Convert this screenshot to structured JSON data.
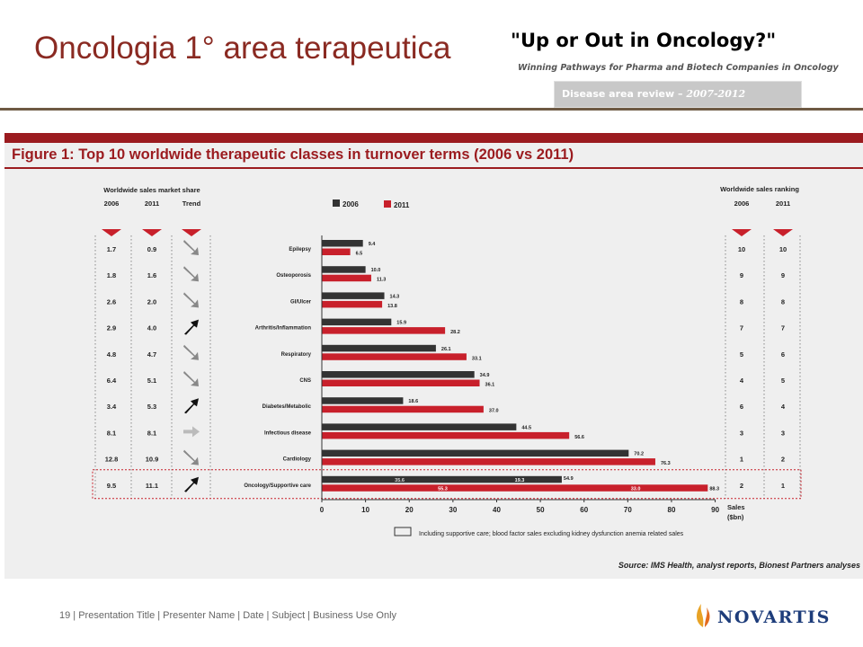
{
  "slide": {
    "title": "Oncologia 1° area terapeutica",
    "book_title": "\"Up or Out in Oncology?\"",
    "book_subtitle": "Winning Pathways for Pharma and Biotech Companies in Oncology",
    "review_label": "Disease area review –",
    "review_years": "2007-2012",
    "footer": "19 | Presentation Title | Presenter Name | Date | Subject | Business Use Only",
    "logo_text": "NOVARTIS"
  },
  "figure": {
    "title": "Figure 1: Top 10 worldwide therapeutic classes in turnover terms (2006 vs 2011)",
    "left_header": "Worldwide sales market share",
    "right_header": "Worldwide sales ranking",
    "col_2006": "2006",
    "col_2011": "2011",
    "col_trend": "Trend",
    "footnote": "Including supportive care; blood factor sales excluding kidney dysfunction anemia related sales",
    "source": "Source: IMS Health, analyst reports, Bionest Partners analyses",
    "colors": {
      "s2006": "#333333",
      "s2011": "#c8202b",
      "accent": "#9b1b1f"
    }
  },
  "chart_data": {
    "type": "bar",
    "orientation": "horizontal",
    "categories": [
      "Epilepsy",
      "Osteoporosis",
      "GI/Ulcer",
      "Arthritis/Inflammation",
      "Respiratory",
      "CNS",
      "Diabetes/Metabolic",
      "Infectious disease",
      "Cardiology",
      "Oncology/Supportive care"
    ],
    "series": [
      {
        "name": "2006",
        "values": [
          9.4,
          10.0,
          14.3,
          15.9,
          26.1,
          34.9,
          18.6,
          44.5,
          70.2,
          54.9
        ]
      },
      {
        "name": "2011",
        "values": [
          6.5,
          11.3,
          13.8,
          28.2,
          33.1,
          36.1,
          37.0,
          56.6,
          76.3,
          88.3
        ]
      }
    ],
    "oncology_breakdown": {
      "2006": {
        "base": 35.6,
        "supportive": 19.3
      },
      "2011": {
        "base": 55.3,
        "supportive": 33.0
      }
    },
    "market_share_2006": [
      "1.7",
      "1.8",
      "2.6",
      "2.9",
      "4.8",
      "6.4",
      "3.4",
      "8.1",
      "12.8",
      "9.5"
    ],
    "market_share_2011": [
      "0.9",
      "1.6",
      "2.0",
      "4.0",
      "4.7",
      "5.1",
      "5.3",
      "8.1",
      "10.9",
      "11.1"
    ],
    "trend": [
      "down",
      "down",
      "down",
      "up",
      "down",
      "down",
      "up",
      "flat",
      "down",
      "up"
    ],
    "ranking_2006": [
      "10",
      "9",
      "8",
      "7",
      "5",
      "4",
      "6",
      "3",
      "1",
      "2"
    ],
    "ranking_2011": [
      "10",
      "9",
      "8",
      "7",
      "6",
      "5",
      "4",
      "3",
      "2",
      "1"
    ],
    "x_ticks": [
      "0",
      "10",
      "20",
      "30",
      "40",
      "50",
      "60",
      "70",
      "80",
      "90"
    ],
    "xlabel": "Sales ($bn)",
    "xlim": [
      0,
      90
    ],
    "legend": [
      "2006",
      "2011"
    ],
    "legend_position": "top"
  }
}
